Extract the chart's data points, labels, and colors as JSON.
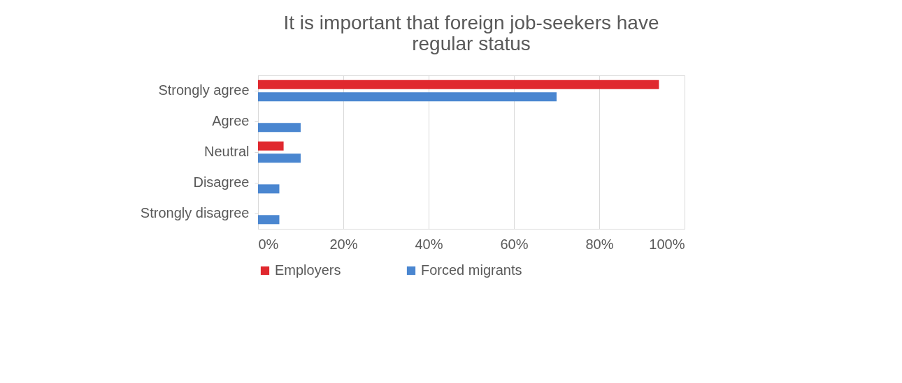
{
  "chart_data": {
    "type": "bar",
    "orientation": "horizontal",
    "title": [
      "It is important that foreign job-seekers have",
      "regular status"
    ],
    "categories": [
      "Strongly agree",
      "Agree",
      "Neutral",
      "Disagree",
      "Strongly disagree"
    ],
    "series": [
      {
        "name": "Employers",
        "color": "#e0282e",
        "values": [
          94,
          0,
          6,
          0,
          0
        ]
      },
      {
        "name": "Forced migrants",
        "color": "#4a86d0",
        "values": [
          70,
          10,
          10,
          5,
          5
        ]
      }
    ],
    "xlim": [
      0,
      100
    ],
    "xticks": [
      {
        "value": 0,
        "label": "0%"
      },
      {
        "value": 20,
        "label": "20%"
      },
      {
        "value": 40,
        "label": "40%"
      },
      {
        "value": 60,
        "label": "60%"
      },
      {
        "value": 80,
        "label": "80%"
      },
      {
        "value": 100,
        "label": "100%"
      }
    ],
    "grid": "x",
    "legend": "bottom"
  }
}
